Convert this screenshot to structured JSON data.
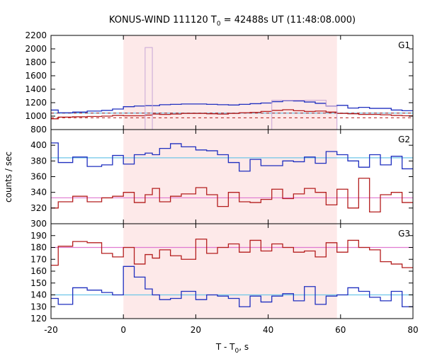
{
  "chart_data": {
    "type": "line",
    "title_prefix": "KONUS-WIND 111120 T",
    "title_sub": "0",
    "title_suffix": " = 42488s UT (11:48:08.000)",
    "xlabel_prefix": "T - T",
    "xlabel_sub": "0",
    "xlabel_suffix": ", s",
    "ylabel": "counts / sec",
    "xlim": [
      -20,
      80
    ],
    "xticks": [
      -20,
      0,
      20,
      40,
      60,
      80
    ],
    "shaded_interval": [
      0,
      59
    ],
    "shade_color": "#fde9e9",
    "bin_edges": [
      -20,
      -18,
      -14,
      -10,
      -6,
      -3,
      0,
      3,
      6,
      8,
      10,
      13,
      16,
      20,
      23,
      26,
      29,
      32,
      35,
      38,
      41,
      44,
      47,
      50,
      53,
      56,
      59,
      62,
      65,
      68,
      71,
      74,
      77,
      80
    ],
    "panels": [
      {
        "label": "G1",
        "ylim": [
          800,
          2200
        ],
        "yticks": [
          800,
          1000,
          1200,
          1400,
          1600,
          1800,
          2000,
          2200
        ],
        "series": [
          {
            "color": "#1f2fbf",
            "values": [
              1090,
              1050,
              1060,
              1075,
              1085,
              1105,
              1140,
              1150,
              1155,
              1155,
              1170,
              1175,
              1180,
              1180,
              1175,
              1170,
              1165,
              1175,
              1185,
              1195,
              1215,
              1230,
              1225,
              1210,
              1190,
              1150,
              1160,
              1120,
              1130,
              1115,
              1115,
              1090,
              1080
            ]
          },
          {
            "color": "#b41e1e",
            "values": [
              960,
              985,
              990,
              995,
              1000,
              1010,
              1005,
              1005,
              1015,
              1030,
              1025,
              1030,
              1040,
              1040,
              1035,
              1030,
              1040,
              1050,
              1055,
              1070,
              1085,
              1095,
              1080,
              1070,
              1075,
              1060,
              1040,
              1035,
              1025,
              1025,
              1020,
              1010,
              1005
            ]
          },
          {
            "color": "#c8a6d6",
            "values": [
              null,
              null,
              null,
              null,
              null,
              null,
              null,
              null,
              2020,
              null,
              null,
              null,
              null,
              null,
              null,
              null,
              null,
              null,
              null,
              null,
              1235,
              1235,
              1235,
              1235,
              1235,
              1150,
              null,
              null,
              null,
              null,
              null,
              null,
              null
            ]
          }
        ],
        "reference_lines": [
          {
            "color": "#6ec6e8",
            "value": 1045,
            "dashed": false
          },
          {
            "color": "#b41e1e",
            "value": 1045,
            "dashed": true
          },
          {
            "color": "#b41e1e",
            "value": 975,
            "dashed": true
          }
        ]
      },
      {
        "label": "G2",
        "ylim": [
          300,
          420
        ],
        "yticks": [
          300,
          320,
          340,
          360,
          380,
          400
        ],
        "series": [
          {
            "color": "#1f2fbf",
            "values": [
              403,
              378,
              385,
              373,
              375,
              387,
              376,
              388,
              390,
              388,
              396,
              402,
              398,
              394,
              393,
              388,
              378,
              367,
              382,
              374,
              374,
              380,
              379,
              385,
              377,
              392,
              388,
              380,
              372,
              388,
              375,
              386,
              370
            ]
          },
          {
            "color": "#b41e1e",
            "values": [
              320,
              328,
              335,
              328,
              333,
              335,
              340,
              327,
              337,
              345,
              328,
              335,
              338,
              346,
              337,
              322,
              340,
              328,
              327,
              331,
              344,
              332,
              338,
              345,
              340,
              324,
              344,
              320,
              358,
              315,
              337,
              340,
              327
            ]
          }
        ],
        "reference_lines": [
          {
            "color": "#6ec6e8",
            "value": 384,
            "dashed": false
          },
          {
            "color": "#e07ad0",
            "value": 333,
            "dashed": false
          }
        ]
      },
      {
        "label": "G3",
        "ylim": [
          120,
          200
        ],
        "yticks": [
          120,
          130,
          140,
          150,
          160,
          170,
          180,
          190
        ],
        "series": [
          {
            "color": "#1f2fbf",
            "values": [
              137,
              132,
              146,
              144,
              142,
              140,
              164,
              155,
              145,
              140,
              136,
              137,
              143,
              136,
              140,
              139,
              137,
              130,
              139,
              134,
              139,
              141,
              135,
              147,
              132,
              139,
              140,
              146,
              143,
              138,
              135,
              143,
              130
            ]
          },
          {
            "color": "#b41e1e",
            "values": [
              165,
              181,
              185,
              184,
              175,
              172,
              180,
              166,
              174,
              171,
              178,
              173,
              170,
              187,
              175,
              180,
              183,
              176,
              186,
              177,
              183,
              180,
              176,
              177,
              172,
              184,
              176,
              186,
              180,
              178,
              168,
              166,
              163
            ]
          }
        ],
        "reference_lines": [
          {
            "color": "#6ec6e8",
            "value": 140,
            "dashed": false
          },
          {
            "color": "#e07ad0",
            "value": 180,
            "dashed": false
          }
        ]
      }
    ]
  }
}
